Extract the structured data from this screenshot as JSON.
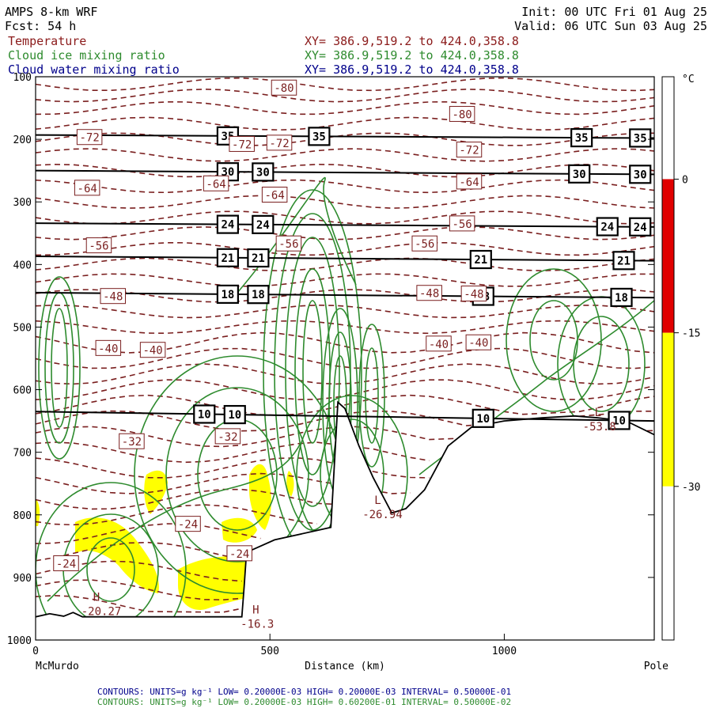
{
  "header": {
    "model": "AMPS 8-km WRF",
    "forecast": "Fcst:    54 h",
    "init": "Init: 00 UTC Fri 01 Aug 25",
    "valid": "Valid: 06 UTC Sun 03 Aug 25",
    "fields": [
      {
        "name": "Temperature",
        "xy": "XY= 386.9,519.2 to 424.0,358.8",
        "color": "#8b1a1a"
      },
      {
        "name": "Cloud ice mixing ratio",
        "xy": "XY= 386.9,519.2 to 424.0,358.8",
        "color": "#2e8b2e"
      },
      {
        "name": "Cloud water mixing ratio",
        "xy": "XY= 386.9,519.2 to 424.0,358.8",
        "color": "#00008b"
      }
    ]
  },
  "colorbar": {
    "unit": "°C",
    "ticks": [
      "0",
      "-15",
      "-30"
    ],
    "bands": [
      {
        "from": 0,
        "to": 10,
        "color": "#ffffff"
      },
      {
        "from": -15,
        "to": 0,
        "color": "#e00000"
      },
      {
        "from": -30,
        "to": -15,
        "color": "#ffff00"
      },
      {
        "from": -45,
        "to": -30,
        "color": "#ffffff"
      }
    ]
  },
  "footer": {
    "line1": "CONTOURS:  UNITS=g kg⁻¹  LOW= 0.20000E-03  HIGH= 0.20000E-03  INTERVAL=  0.50000E-01",
    "line2": "CONTOURS:  UNITS=g kg⁻¹  LOW= 0.20000E-03  HIGH= 0.60200E-01  INTERVAL=  0.50000E-02",
    "line1_color": "#00008b",
    "line2_color": "#2e8b2e"
  },
  "chart_data": {
    "type": "cross-section",
    "xlabel": "Distance (km)",
    "x_endpoints": [
      "McMurdo",
      "Pole"
    ],
    "xlim": [
      0,
      1320
    ],
    "x_ticks": [
      0,
      500,
      1000
    ],
    "ylim": [
      1000,
      100
    ],
    "y_ticks": [
      100,
      200,
      300,
      400,
      500,
      600,
      700,
      800,
      900,
      1000
    ],
    "theta_lines": [
      {
        "value": 35,
        "p_left": 193,
        "p_right": 198,
        "label_x": [
          410,
          605,
          1165,
          1290
        ]
      },
      {
        "value": 30,
        "p_left": 250,
        "p_right": 256,
        "label_x": [
          410,
          485,
          1160,
          1290
        ]
      },
      {
        "value": 24,
        "p_left": 334,
        "p_right": 340,
        "label_x": [
          410,
          485,
          1220,
          1290
        ]
      },
      {
        "value": 21,
        "p_left": 387,
        "p_right": 394,
        "label_x": [
          410,
          475,
          950,
          1255
        ]
      },
      {
        "value": 18,
        "p_left": 445,
        "p_right": 453,
        "label_x": [
          410,
          475,
          955,
          1250
        ]
      },
      {
        "value": 10,
        "p_left": 635,
        "p_right": 650,
        "label_x": [
          360,
          425,
          955,
          1245
        ]
      }
    ],
    "temperature_labels": [
      {
        "text": "-80",
        "x": 530,
        "p": 118
      },
      {
        "text": "-80",
        "x": 910,
        "p": 160
      },
      {
        "text": "-72",
        "x": 115,
        "p": 197
      },
      {
        "text": "-72",
        "x": 440,
        "p": 208
      },
      {
        "text": "-72",
        "x": 520,
        "p": 206
      },
      {
        "text": "-72",
        "x": 925,
        "p": 217
      },
      {
        "text": "-64",
        "x": 110,
        "p": 278
      },
      {
        "text": "-64",
        "x": 385,
        "p": 271
      },
      {
        "text": "-64",
        "x": 510,
        "p": 289
      },
      {
        "text": "-64",
        "x": 925,
        "p": 268
      },
      {
        "text": "-56",
        "x": 135,
        "p": 370
      },
      {
        "text": "-56",
        "x": 540,
        "p": 367
      },
      {
        "text": "-56",
        "x": 830,
        "p": 367
      },
      {
        "text": "-56",
        "x": 910,
        "p": 335
      },
      {
        "text": "-48",
        "x": 165,
        "p": 451
      },
      {
        "text": "-48",
        "x": 840,
        "p": 446
      },
      {
        "text": "-48",
        "x": 935,
        "p": 447
      },
      {
        "text": "-40",
        "x": 155,
        "p": 534
      },
      {
        "text": "-40",
        "x": 250,
        "p": 537
      },
      {
        "text": "-40",
        "x": 860,
        "p": 527
      },
      {
        "text": "-40",
        "x": 945,
        "p": 525
      },
      {
        "text": "-32",
        "x": 205,
        "p": 683
      },
      {
        "text": "-32",
        "x": 410,
        "p": 675
      },
      {
        "text": "-24",
        "x": 325,
        "p": 815
      },
      {
        "text": "-24",
        "x": 435,
        "p": 862
      },
      {
        "text": "-24",
        "x": 65,
        "p": 878
      }
    ],
    "extrema": [
      {
        "kind": "H",
        "text": "-20.27",
        "x": 165,
        "p": 950
      },
      {
        "kind": "H",
        "text": "-16.3",
        "x": 505,
        "p": 970
      },
      {
        "kind": "L",
        "text": "-26.94",
        "x": 765,
        "p": 795
      },
      {
        "kind": "L",
        "text": "-53.8",
        "x": 1235,
        "p": 655
      }
    ],
    "terrain_km_hpa": [
      [
        0,
        963
      ],
      [
        30,
        958
      ],
      [
        60,
        962
      ],
      [
        80,
        956
      ],
      [
        100,
        963
      ],
      [
        200,
        963
      ],
      [
        300,
        963
      ],
      [
        440,
        963
      ],
      [
        445,
        915
      ],
      [
        450,
        860
      ],
      [
        510,
        840
      ],
      [
        630,
        820
      ],
      [
        645,
        620
      ],
      [
        660,
        630
      ],
      [
        690,
        690
      ],
      [
        720,
        740
      ],
      [
        760,
        797
      ],
      [
        790,
        790
      ],
      [
        830,
        760
      ],
      [
        880,
        690
      ],
      [
        930,
        660
      ],
      [
        1000,
        650
      ],
      [
        1080,
        645
      ],
      [
        1150,
        642
      ],
      [
        1200,
        645
      ],
      [
        1260,
        650
      ],
      [
        1320,
        672
      ]
    ]
  }
}
